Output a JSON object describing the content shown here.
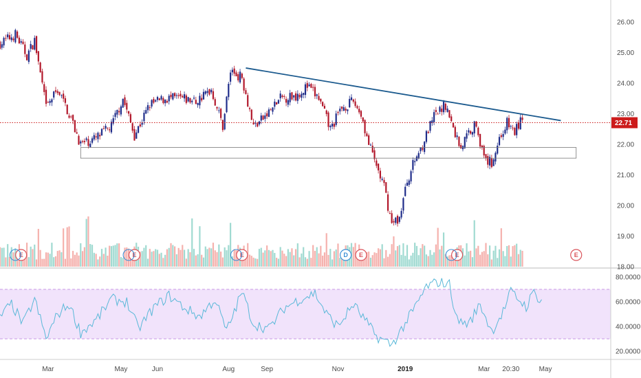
{
  "colors": {
    "background": "#ffffff",
    "candle_up": "#1f2d8a",
    "candle_down": "#b2182b",
    "volume_up": "#8fd3c9",
    "volume_down": "#f3a39f",
    "trendline": "#1b5a8e",
    "price_line": "#cc1b1b",
    "rsi_line": "#59b8d8",
    "rsi_band": "#f1e3fb",
    "rsi_bound": "#c79ae4",
    "earnings": "#d9535a",
    "dividend": "#3c8fd6",
    "axis_text": "#4a4a4a",
    "grid": "#dddddd"
  },
  "chart_data": [
    {
      "type": "candlestick",
      "panel": "price",
      "x_tick_labels": [
        "Mar",
        "May",
        "Jun",
        "Aug",
        "Sep",
        "Nov",
        "2019",
        "Mar",
        "20:30",
        "May"
      ],
      "y_tick_labels": [
        "26.00",
        "25.00",
        "24.00",
        "23.00",
        "22.00",
        "21.00",
        "20.00",
        "19.00",
        "18.00"
      ],
      "ylim": [
        18,
        26.5
      ],
      "current_price": "22.71",
      "anchors": [
        {
          "day": 0,
          "price": 25.3
        },
        {
          "day": 8,
          "price": 25.6
        },
        {
          "day": 14,
          "price": 24.9
        },
        {
          "day": 18,
          "price": 25.4
        },
        {
          "day": 24,
          "price": 23.2
        },
        {
          "day": 30,
          "price": 23.8
        },
        {
          "day": 36,
          "price": 23.0
        },
        {
          "day": 42,
          "price": 22.0
        },
        {
          "day": 50,
          "price": 22.2
        },
        {
          "day": 58,
          "price": 22.6
        },
        {
          "day": 64,
          "price": 23.5
        },
        {
          "day": 70,
          "price": 22.3
        },
        {
          "day": 78,
          "price": 23.3
        },
        {
          "day": 86,
          "price": 23.5
        },
        {
          "day": 94,
          "price": 23.5
        },
        {
          "day": 102,
          "price": 23.4
        },
        {
          "day": 110,
          "price": 23.8
        },
        {
          "day": 116,
          "price": 22.6
        },
        {
          "day": 120,
          "price": 24.4
        },
        {
          "day": 126,
          "price": 24.2
        },
        {
          "day": 132,
          "price": 22.6
        },
        {
          "day": 138,
          "price": 22.9
        },
        {
          "day": 146,
          "price": 23.5
        },
        {
          "day": 154,
          "price": 23.6
        },
        {
          "day": 160,
          "price": 23.9
        },
        {
          "day": 166,
          "price": 23.5
        },
        {
          "day": 172,
          "price": 22.5
        },
        {
          "day": 178,
          "price": 23.2
        },
        {
          "day": 184,
          "price": 23.4
        },
        {
          "day": 188,
          "price": 23.0
        },
        {
          "day": 192,
          "price": 22.0
        },
        {
          "day": 196,
          "price": 21.3
        },
        {
          "day": 200,
          "price": 20.6
        },
        {
          "day": 204,
          "price": 19.4
        },
        {
          "day": 208,
          "price": 19.6
        },
        {
          "day": 212,
          "price": 20.8
        },
        {
          "day": 216,
          "price": 21.5
        },
        {
          "day": 220,
          "price": 22.0
        },
        {
          "day": 226,
          "price": 22.9
        },
        {
          "day": 232,
          "price": 23.3
        },
        {
          "day": 236,
          "price": 22.5
        },
        {
          "day": 240,
          "price": 21.9
        },
        {
          "day": 244,
          "price": 22.4
        },
        {
          "day": 248,
          "price": 22.7
        },
        {
          "day": 252,
          "price": 21.5
        },
        {
          "day": 256,
          "price": 21.4
        },
        {
          "day": 260,
          "price": 22.2
        },
        {
          "day": 264,
          "price": 22.7
        },
        {
          "day": 268,
          "price": 22.4
        },
        {
          "day": 272,
          "price": 22.9
        }
      ],
      "trendline": [
        {
          "day": 128,
          "price": 24.5
        },
        {
          "day": 292,
          "price": 22.78
        }
      ],
      "support_zone": [
        21.55,
        21.9
      ]
    },
    {
      "type": "bar",
      "panel": "volume",
      "description_of_values": "relative daily volume 0-1",
      "event_markers": [
        {
          "label": "E",
          "kind": "earnings",
          "day": 11
        },
        {
          "label": "E",
          "kind": "earnings",
          "day": 70
        },
        {
          "label": "E",
          "kind": "earnings",
          "day": 126
        },
        {
          "label": "D",
          "kind": "dividend",
          "day": 180
        },
        {
          "label": "E",
          "kind": "earnings",
          "day": 188
        },
        {
          "label": "E",
          "kind": "earnings",
          "day": 238
        },
        {
          "label": "E",
          "kind": "earnings",
          "day": 300
        }
      ]
    },
    {
      "type": "line",
      "panel": "rsi",
      "y_tick_labels": [
        "80.0000",
        "60.0000",
        "40.0000",
        "20.0000"
      ],
      "ylim": [
        15,
        85
      ],
      "bands": [
        30,
        70
      ],
      "anchors": [
        {
          "day": 0,
          "value": 48
        },
        {
          "day": 6,
          "value": 58
        },
        {
          "day": 12,
          "value": 42
        },
        {
          "day": 18,
          "value": 62
        },
        {
          "day": 24,
          "value": 30
        },
        {
          "day": 30,
          "value": 50
        },
        {
          "day": 36,
          "value": 58
        },
        {
          "day": 42,
          "value": 35
        },
        {
          "day": 50,
          "value": 45
        },
        {
          "day": 58,
          "value": 62
        },
        {
          "day": 66,
          "value": 60
        },
        {
          "day": 72,
          "value": 38
        },
        {
          "day": 80,
          "value": 55
        },
        {
          "day": 88,
          "value": 65
        },
        {
          "day": 96,
          "value": 55
        },
        {
          "day": 104,
          "value": 48
        },
        {
          "day": 112,
          "value": 62
        },
        {
          "day": 118,
          "value": 36
        },
        {
          "day": 126,
          "value": 68
        },
        {
          "day": 132,
          "value": 42
        },
        {
          "day": 140,
          "value": 38
        },
        {
          "day": 148,
          "value": 55
        },
        {
          "day": 156,
          "value": 62
        },
        {
          "day": 164,
          "value": 67
        },
        {
          "day": 170,
          "value": 50
        },
        {
          "day": 176,
          "value": 40
        },
        {
          "day": 184,
          "value": 58
        },
        {
          "day": 190,
          "value": 45
        },
        {
          "day": 196,
          "value": 32
        },
        {
          "day": 204,
          "value": 25
        },
        {
          "day": 210,
          "value": 40
        },
        {
          "day": 216,
          "value": 55
        },
        {
          "day": 222,
          "value": 72
        },
        {
          "day": 228,
          "value": 76
        },
        {
          "day": 234,
          "value": 74
        },
        {
          "day": 238,
          "value": 45
        },
        {
          "day": 244,
          "value": 42
        },
        {
          "day": 250,
          "value": 58
        },
        {
          "day": 256,
          "value": 36
        },
        {
          "day": 262,
          "value": 52
        },
        {
          "day": 266,
          "value": 68
        },
        {
          "day": 270,
          "value": 62
        },
        {
          "day": 274,
          "value": 56
        },
        {
          "day": 278,
          "value": 68
        },
        {
          "day": 282,
          "value": 60
        }
      ]
    }
  ]
}
